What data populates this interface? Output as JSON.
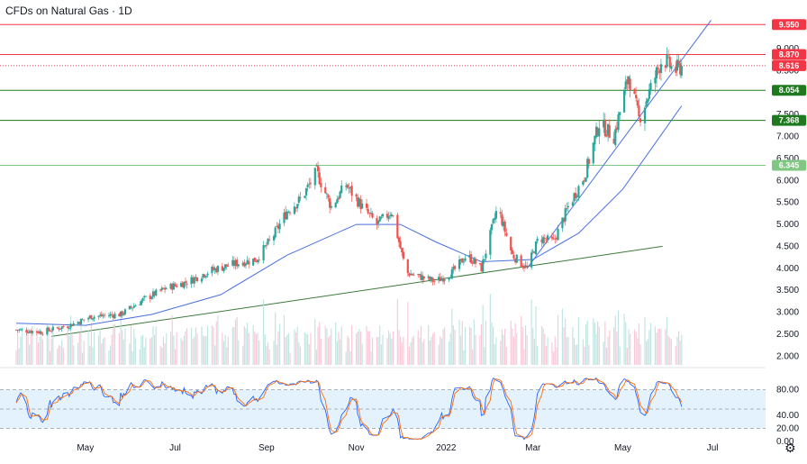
{
  "chart_data": [
    {
      "type": "candlestick",
      "title": "CFDs on Natural Gas · 1D",
      "x_labels": [
        "May",
        "Jul",
        "Sep",
        "Nov",
        "2022",
        "Mar",
        "May",
        "Jul"
      ],
      "y_ticks": [
        "9.000",
        "8.500",
        "8.000",
        "7.500",
        "7.000",
        "6.500",
        "6.000",
        "5.500",
        "5.000",
        "4.500",
        "4.000",
        "3.500",
        "3.000",
        "2.500",
        "2.000"
      ],
      "ylim": [
        1.8,
        9.7
      ],
      "close_series": [
        {
          "date": "2021-03-15",
          "close": 2.6
        },
        {
          "date": "2021-04-01",
          "close": 2.55
        },
        {
          "date": "2021-04-20",
          "close": 2.7
        },
        {
          "date": "2021-05-05",
          "close": 2.9
        },
        {
          "date": "2021-05-25",
          "close": 2.95
        },
        {
          "date": "2021-06-10",
          "close": 3.3
        },
        {
          "date": "2021-06-25",
          "close": 3.55
        },
        {
          "date": "2021-07-10",
          "close": 3.7
        },
        {
          "date": "2021-07-25",
          "close": 3.95
        },
        {
          "date": "2021-08-10",
          "close": 4.1
        },
        {
          "date": "2021-08-25",
          "close": 4.2
        },
        {
          "date": "2021-09-05",
          "close": 4.7
        },
        {
          "date": "2021-09-15",
          "close": 5.3
        },
        {
          "date": "2021-09-25",
          "close": 5.6
        },
        {
          "date": "2021-10-05",
          "close": 6.2
        },
        {
          "date": "2021-10-15",
          "close": 5.4
        },
        {
          "date": "2021-10-25",
          "close": 5.9
        },
        {
          "date": "2021-11-05",
          "close": 5.4
        },
        {
          "date": "2021-11-15",
          "close": 5.0
        },
        {
          "date": "2021-11-25",
          "close": 5.3
        },
        {
          "date": "2021-12-05",
          "close": 3.9
        },
        {
          "date": "2021-12-15",
          "close": 3.8
        },
        {
          "date": "2021-12-25",
          "close": 3.7
        },
        {
          "date": "2022-01-05",
          "close": 3.9
        },
        {
          "date": "2022-01-15",
          "close": 4.3
        },
        {
          "date": "2022-01-25",
          "close": 4.0
        },
        {
          "date": "2022-02-05",
          "close": 5.4
        },
        {
          "date": "2022-02-15",
          "close": 4.3
        },
        {
          "date": "2022-02-25",
          "close": 4.0
        },
        {
          "date": "2022-03-05",
          "close": 4.7
        },
        {
          "date": "2022-03-15",
          "close": 4.6
        },
        {
          "date": "2022-03-25",
          "close": 5.4
        },
        {
          "date": "2022-04-05",
          "close": 6.1
        },
        {
          "date": "2022-04-15",
          "close": 7.3
        },
        {
          "date": "2022-04-25",
          "close": 7.0
        },
        {
          "date": "2022-05-05",
          "close": 8.4
        },
        {
          "date": "2022-05-12",
          "close": 7.4
        },
        {
          "date": "2022-05-20",
          "close": 8.1
        },
        {
          "date": "2022-05-28",
          "close": 8.8
        },
        {
          "date": "2022-06-05",
          "close": 8.5
        },
        {
          "date": "2022-06-10",
          "close": 8.6
        }
      ],
      "moving_average": [
        {
          "date": "2021-03-15",
          "value": 2.75
        },
        {
          "date": "2021-05-01",
          "value": 2.7
        },
        {
          "date": "2021-06-15",
          "value": 2.95
        },
        {
          "date": "2021-08-01",
          "value": 3.4
        },
        {
          "date": "2021-09-15",
          "value": 4.3
        },
        {
          "date": "2021-11-01",
          "value": 5.0
        },
        {
          "date": "2021-12-01",
          "value": 5.0
        },
        {
          "date": "2021-12-25",
          "value": 4.6
        },
        {
          "date": "2022-01-25",
          "value": 4.15
        },
        {
          "date": "2022-03-01",
          "value": 4.2
        },
        {
          "date": "2022-04-01",
          "value": 4.8
        },
        {
          "date": "2022-05-01",
          "value": 5.8
        },
        {
          "date": "2022-06-10",
          "value": 7.7
        }
      ],
      "trendlines": [
        {
          "color": "#3d7a3d",
          "points": [
            {
              "date": "2021-04-08",
              "value": 2.45
            },
            {
              "date": "2022-05-28",
              "value": 4.5
            }
          ]
        },
        {
          "color": "#4a6fe0",
          "points": [
            {
              "date": "2022-02-25",
              "value": 4.0
            },
            {
              "date": "2022-06-30",
              "value": 9.65
            }
          ]
        }
      ],
      "horizontal_levels": [
        {
          "value": 9.55,
          "label": "9.550",
          "color": "#f23645",
          "style": "solid"
        },
        {
          "value": 8.87,
          "label": "8.870",
          "color": "#f23645",
          "style": "solid"
        },
        {
          "value": 8.616,
          "label": "8.616",
          "color": "#f23645",
          "style": "dotted"
        },
        {
          "value": 8.054,
          "label": "8.054",
          "color": "#1f7a1f",
          "style": "solid"
        },
        {
          "value": 7.368,
          "label": "7.368",
          "color": "#1f7a1f",
          "style": "solid"
        },
        {
          "value": 6.345,
          "label": "6.345",
          "color": "#81c784",
          "style": "solid"
        }
      ],
      "volume": {
        "shown": true
      }
    },
    {
      "type": "line",
      "name": "stochastic",
      "ylim": [
        0,
        100
      ],
      "y_ticks": [
        "80.00",
        "40.00",
        "20.00",
        "0.00"
      ],
      "band": [
        20,
        80
      ],
      "mid_line": 50,
      "series": [
        {
          "color": "#2962ff"
        },
        {
          "color": "#ff6d00"
        }
      ]
    }
  ],
  "colors": {
    "up": "#26a69a",
    "down": "#ef5350",
    "ma": "#4a6fe0",
    "k": "#2962ff",
    "d": "#ff6d00",
    "band": "#e3f2fd"
  },
  "icons": {
    "settings": "gear-icon"
  }
}
